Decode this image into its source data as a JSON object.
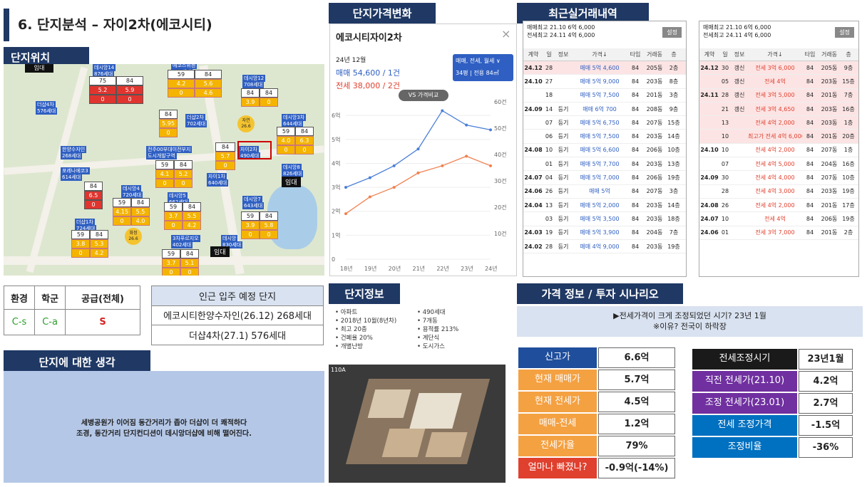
{
  "title": "6. 단지분석 – 자이2차(에코시티)",
  "sections": {
    "location": "단지위치",
    "price_change": "단지가격변화",
    "recent": "최근실거래내역",
    "info": "단지정보",
    "scenario": "가격 정보 / 투자 시나리오",
    "thoughts": "단지에 대한 생각"
  },
  "grades": {
    "headers": [
      "환경",
      "학군",
      "공급(전체)"
    ],
    "values": [
      "C-s",
      "C-a",
      "S"
    ]
  },
  "nearby": {
    "title": "인근 입주 예정 단지",
    "rows": [
      "에코시티한양수자인(26.12) 268세대",
      "더샵4차(27.1) 576세대"
    ]
  },
  "thoughts_text": [
    "세병공원가 이어짐 동간거리가 좁아 더샵이 더 쾌적하다",
    "조경, 동간거리 단지컨디션이 데시앙더샵에 비해 떨어진다."
  ],
  "map": {
    "labels": [
      "데시앙14",
      "876세대",
      "에코스위첸",
      "948세대",
      "데시앙12",
      "708세대",
      "더샵4차",
      "576세대",
      "더샵2차",
      "702세대",
      "데시앙3차",
      "644세대",
      "한양수자인",
      "268세대",
      "전주00부대이전부지",
      "도시개발구역",
      "자이2차",
      "490세대",
      "데시앙8",
      "826세대",
      "포레나에코3",
      "614세대",
      "데시앙4",
      "720세대",
      "데시앙5",
      "662세대",
      "자이1차",
      "640세대",
      "데시앙7",
      "643세대",
      "더샵1차",
      "724세대",
      "3차푸르지오",
      "402세대",
      "데시앙",
      "830세대",
      "임대",
      "임대",
      "임대",
      "화정 26.6",
      "자연 26.6",
      "영대",
      "세병공원"
    ],
    "blocks": [
      {
        "v": [
          "75",
          "84",
          "5.2",
          "5.9",
          "0",
          "0"
        ]
      },
      {
        "v": [
          "59",
          "84",
          "4.2",
          "5.6",
          "0",
          "4.6"
        ]
      },
      {
        "v": [
          "84",
          "84",
          "3.9",
          "0"
        ]
      },
      {
        "v": [
          "84",
          "5.95",
          "0"
        ]
      },
      {
        "v": [
          "59",
          "84",
          "4.0",
          "6.3",
          "0",
          "0"
        ]
      },
      {
        "v": [
          "84",
          "5.7",
          "0"
        ]
      },
      {
        "v": [
          "59",
          "84",
          "4.1",
          "5.2",
          "0",
          "0"
        ]
      },
      {
        "v": [
          "84",
          "6.5",
          "0"
        ]
      },
      {
        "v": [
          "59",
          "84",
          "4.15",
          "5.5",
          "0",
          "4.0"
        ]
      },
      {
        "v": [
          "59",
          "84",
          "3.7",
          "5.5",
          "0",
          "4.2"
        ]
      },
      {
        "v": [
          "59",
          "84",
          "3.9",
          "5.8",
          "0",
          "0"
        ]
      },
      {
        "v": [
          "59",
          "84",
          "3.8",
          "5.3",
          "0",
          "4.2"
        ]
      },
      {
        "v": [
          "59",
          "84",
          "3.7",
          "5.1",
          "0",
          "0"
        ]
      }
    ]
  },
  "chart_panel": {
    "name": "에코시티자이2차",
    "period": "24년 12월",
    "sale": "매매 54,600 / 1건",
    "jeonse": "전세 38,000 / 2건",
    "filter": "매매, 전세, 월세 ∨",
    "area": "34평 | 전용 84㎡",
    "vs_button": "VS 가격비교"
  },
  "chart_data": {
    "type": "line",
    "x": [
      "18년",
      "19년",
      "20년",
      "21년",
      "22년",
      "23년",
      "24년"
    ],
    "left_ticks": [
      "6억",
      "5억",
      "4억",
      "3억",
      "2억",
      "1억",
      "0"
    ],
    "right_ticks": [
      "60건",
      "50건",
      "40건",
      "30건",
      "20건",
      "10건"
    ],
    "ylim": [
      0,
      6.6
    ],
    "series": [
      {
        "name": "매매",
        "color": "#4a7fd8",
        "values": [
          3.0,
          3.4,
          3.9,
          4.6,
          6.2,
          5.6,
          5.4
        ]
      },
      {
        "name": "전세",
        "color": "#f08050",
        "values": [
          1.9,
          2.6,
          3.0,
          3.6,
          3.9,
          4.3,
          3.9
        ]
      }
    ]
  },
  "tx1": {
    "top": [
      "매매최고 21.10 6억 6,000",
      "전세최고 24.11 4억 6,000"
    ],
    "btn": "설정",
    "headers": [
      "계약",
      "일",
      "정보",
      "가격↓",
      "타입",
      "거래동",
      "층"
    ],
    "rows": [
      [
        "24.12",
        "28",
        "",
        "매매 5억 4,600",
        "84",
        "205동",
        "2층"
      ],
      [
        "24.10",
        "27",
        "",
        "매매 5억 9,000",
        "84",
        "203동",
        "8층"
      ],
      [
        "",
        "18",
        "",
        "매매 5억 7,500",
        "84",
        "201동",
        "3층"
      ],
      [
        "24.09",
        "14",
        "등기",
        "매매 6억 700",
        "84",
        "208동",
        "9층"
      ],
      [
        "",
        "07",
        "등기",
        "매매 5억 6,750",
        "84",
        "207동",
        "15층"
      ],
      [
        "",
        "06",
        "등기",
        "매매 5억 7,500",
        "84",
        "203동",
        "14층"
      ],
      [
        "24.08",
        "10",
        "등기",
        "매매 5억 6,600",
        "84",
        "206동",
        "10층"
      ],
      [
        "",
        "01",
        "등기",
        "매매 5억 7,700",
        "84",
        "203동",
        "13층"
      ],
      [
        "24.07",
        "04",
        "등기",
        "매매 5억 7,000",
        "84",
        "206동",
        "19층"
      ],
      [
        "24.06",
        "26",
        "등기",
        "매매 5억",
        "84",
        "207동",
        "3층"
      ],
      [
        "24.04",
        "13",
        "등기",
        "매매 5억 2,000",
        "84",
        "203동",
        "14층"
      ],
      [
        "",
        "03",
        "등기",
        "매매 5억 3,500",
        "84",
        "203동",
        "18층"
      ],
      [
        "24.03",
        "19",
        "등기",
        "매매 5억 3,900",
        "84",
        "204동",
        "7층"
      ],
      [
        "24.02",
        "28",
        "등기",
        "매매 4억 9,000",
        "84",
        "203동",
        "19층"
      ]
    ]
  },
  "tx2": {
    "top": [
      "매매최고 21.10 6억 6,000",
      "전세최고 24.11 4억 6,000"
    ],
    "btn": "설정",
    "headers": [
      "계약",
      "일",
      "정보",
      "가격↓",
      "타입",
      "거래동",
      "층"
    ],
    "rows": [
      [
        "24.12",
        "30",
        "갱신",
        "전세 3억 6,000",
        "84",
        "205동",
        "9층"
      ],
      [
        "",
        "05",
        "갱신",
        "전세 4억",
        "84",
        "203동",
        "15층"
      ],
      [
        "24.11",
        "28",
        "갱신",
        "전세 3억 5,000",
        "84",
        "201동",
        "7층"
      ],
      [
        "",
        "21",
        "갱신",
        "전세 3억 4,650",
        "84",
        "203동",
        "16층"
      ],
      [
        "",
        "13",
        "",
        "전세 4억 2,000",
        "84",
        "203동",
        "1층"
      ],
      [
        "",
        "10",
        "",
        "최고가 전세 4억 6,000",
        "84",
        "201동",
        "20층"
      ],
      [
        "24.10",
        "10",
        "",
        "전세 4억 2,000",
        "84",
        "207동",
        "1층"
      ],
      [
        "",
        "07",
        "",
        "전세 4억 5,000",
        "84",
        "204동",
        "16층"
      ],
      [
        "24.09",
        "30",
        "",
        "전세 4억 4,000",
        "84",
        "207동",
        "10층"
      ],
      [
        "",
        "28",
        "",
        "전세 4억 3,000",
        "84",
        "203동",
        "19층"
      ],
      [
        "24.08",
        "26",
        "",
        "전세 4억 2,000",
        "84",
        "201동",
        "17층"
      ],
      [
        "24.07",
        "10",
        "",
        "전세 4억",
        "84",
        "206동",
        "19층"
      ],
      [
        "24.06",
        "01",
        "",
        "전세 3억 7,000",
        "84",
        "201동",
        "2층"
      ]
    ]
  },
  "complex_info": {
    "col1": [
      "아파트",
      "2018년 10월(8년차)",
      "최고 20층",
      "건폐율 20%",
      "개별난방"
    ],
    "col2": [
      "490세대",
      "7개동",
      "용적률 213%",
      "계단식",
      "도시가스"
    ],
    "floor_tag": "110A"
  },
  "scenario": {
    "banner1": "▶전세가격이 크게 조정되었던 시기? 23년 1월",
    "banner2": "※이유? 전국이 하락장",
    "left": [
      {
        "label": "신고가",
        "value": "6.6억"
      },
      {
        "label": "현재 매매가",
        "value": "5.7억"
      },
      {
        "label": "현재 전세가",
        "value": "4.5억"
      },
      {
        "label": "매매-전세",
        "value": "1.2억"
      },
      {
        "label": "전세가율",
        "value": "79%"
      },
      {
        "label": "얼마나 빠졌나?",
        "value": "-0.9억(-14%)"
      }
    ],
    "right": [
      {
        "label": "전세조정시기",
        "value": "23년1월"
      },
      {
        "label": "직전 전세가(21.10)",
        "value": "4.2억"
      },
      {
        "label": "조정 전세가(23.01)",
        "value": "2.7억"
      },
      {
        "label": "전세 조정가격",
        "value": "-1.5억"
      },
      {
        "label": "조정비율",
        "value": "-36%"
      }
    ],
    "colors": {
      "navy": "#1f4e9c",
      "orange": "#f4a142",
      "red": "#e0402e",
      "black": "#1a1a1a",
      "purple": "#7030a0",
      "blue": "#0070c0"
    }
  }
}
